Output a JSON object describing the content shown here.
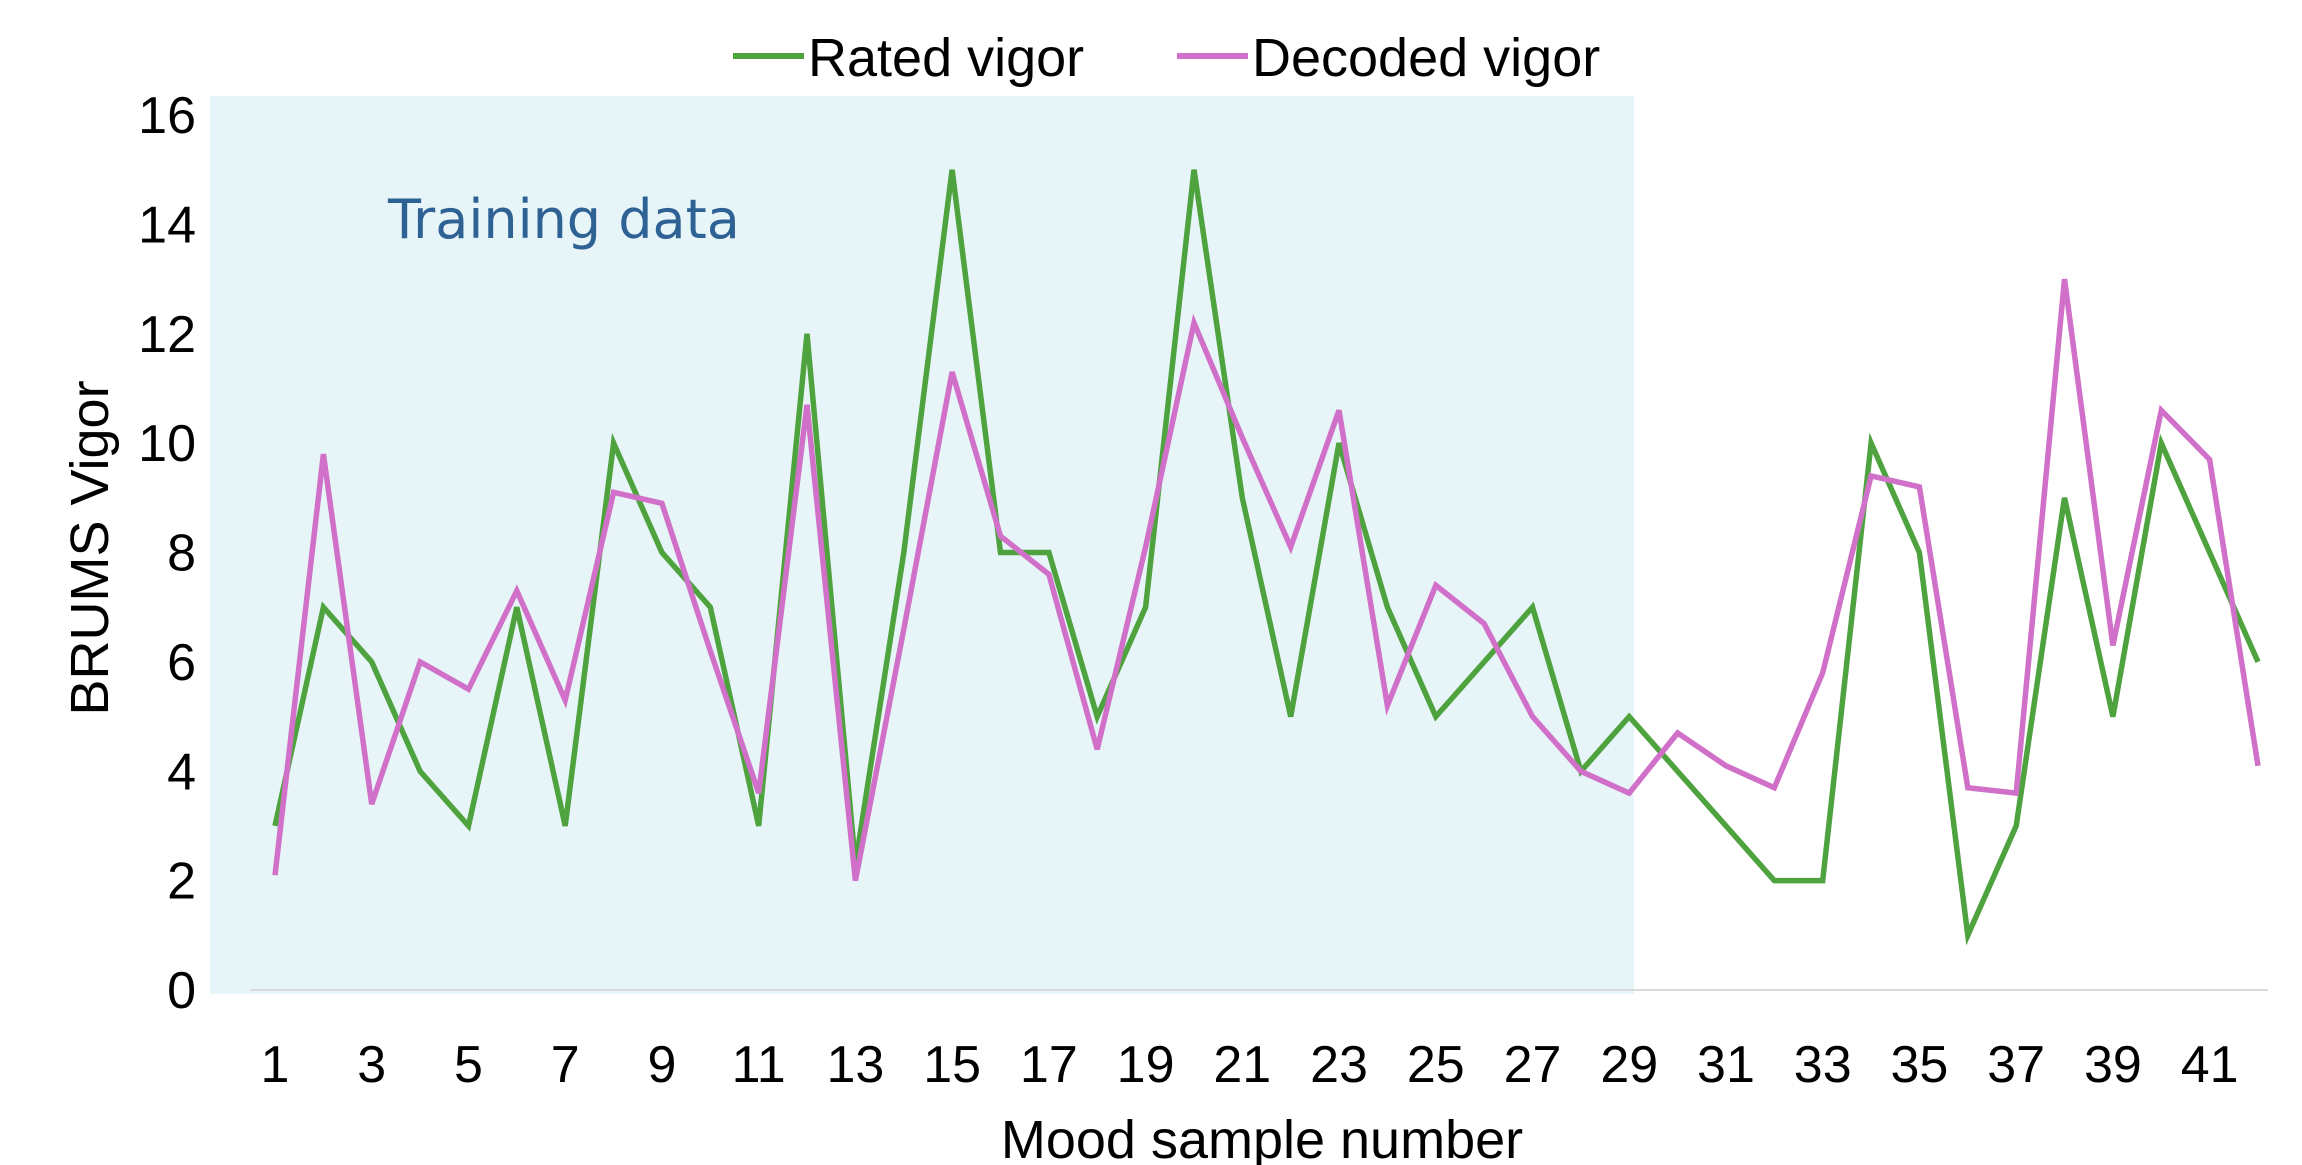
{
  "chart_data": {
    "type": "line",
    "x": [
      1,
      2,
      3,
      4,
      5,
      6,
      7,
      8,
      9,
      10,
      11,
      12,
      13,
      14,
      15,
      16,
      17,
      18,
      19,
      20,
      21,
      22,
      23,
      24,
      25,
      26,
      27,
      28,
      29,
      30,
      31,
      32,
      33,
      34,
      35,
      36,
      37,
      38,
      39,
      40,
      41,
      42
    ],
    "x_tick_labels": [
      "1",
      "3",
      "5",
      "7",
      "9",
      "11",
      "13",
      "15",
      "17",
      "19",
      "21",
      "23",
      "25",
      "27",
      "29",
      "31",
      "33",
      "35",
      "37",
      "39",
      "41"
    ],
    "y_tick_labels": [
      "0",
      "2",
      "4",
      "6",
      "8",
      "10",
      "12",
      "14",
      "16"
    ],
    "xlim": [
      1,
      42
    ],
    "ylim": [
      0,
      16
    ],
    "xlabel": "Mood sample number",
    "ylabel": "BRUMS Vigor",
    "grid": false,
    "legend_position": "top-center",
    "series": [
      {
        "name": "Rated vigor",
        "color": "#4ea33f",
        "values": [
          3,
          7,
          6,
          4,
          3,
          7,
          3,
          10,
          8,
          7,
          3,
          12,
          2.3,
          8,
          15,
          8,
          8,
          5,
          7,
          15,
          9,
          5,
          10,
          7,
          5,
          6,
          7,
          4,
          5,
          4,
          3,
          2,
          2,
          10,
          8,
          1,
          3,
          9,
          5,
          10,
          8,
          6
        ]
      },
      {
        "name": "Decoded vigor",
        "color": "#d070c8",
        "values": [
          2.1,
          9.8,
          3.4,
          6,
          5.5,
          7.3,
          5.3,
          9.1,
          8.9,
          6.2,
          3.6,
          10.7,
          2,
          6.6,
          11.3,
          8.3,
          7.6,
          4.4,
          8.1,
          12.2,
          10.1,
          8.1,
          10.6,
          5.2,
          7.4,
          6.7,
          5,
          4,
          3.6,
          4.7,
          4.1,
          3.7,
          5.8,
          9.4,
          9.2,
          3.7,
          3.6,
          13,
          6.3,
          10.6,
          9.7,
          4.1
        ]
      }
    ],
    "annotation": {
      "text": "Training data",
      "color": "#2e6194",
      "region_x": [
        1,
        29
      ],
      "region_color": "#e7f5f8"
    }
  }
}
